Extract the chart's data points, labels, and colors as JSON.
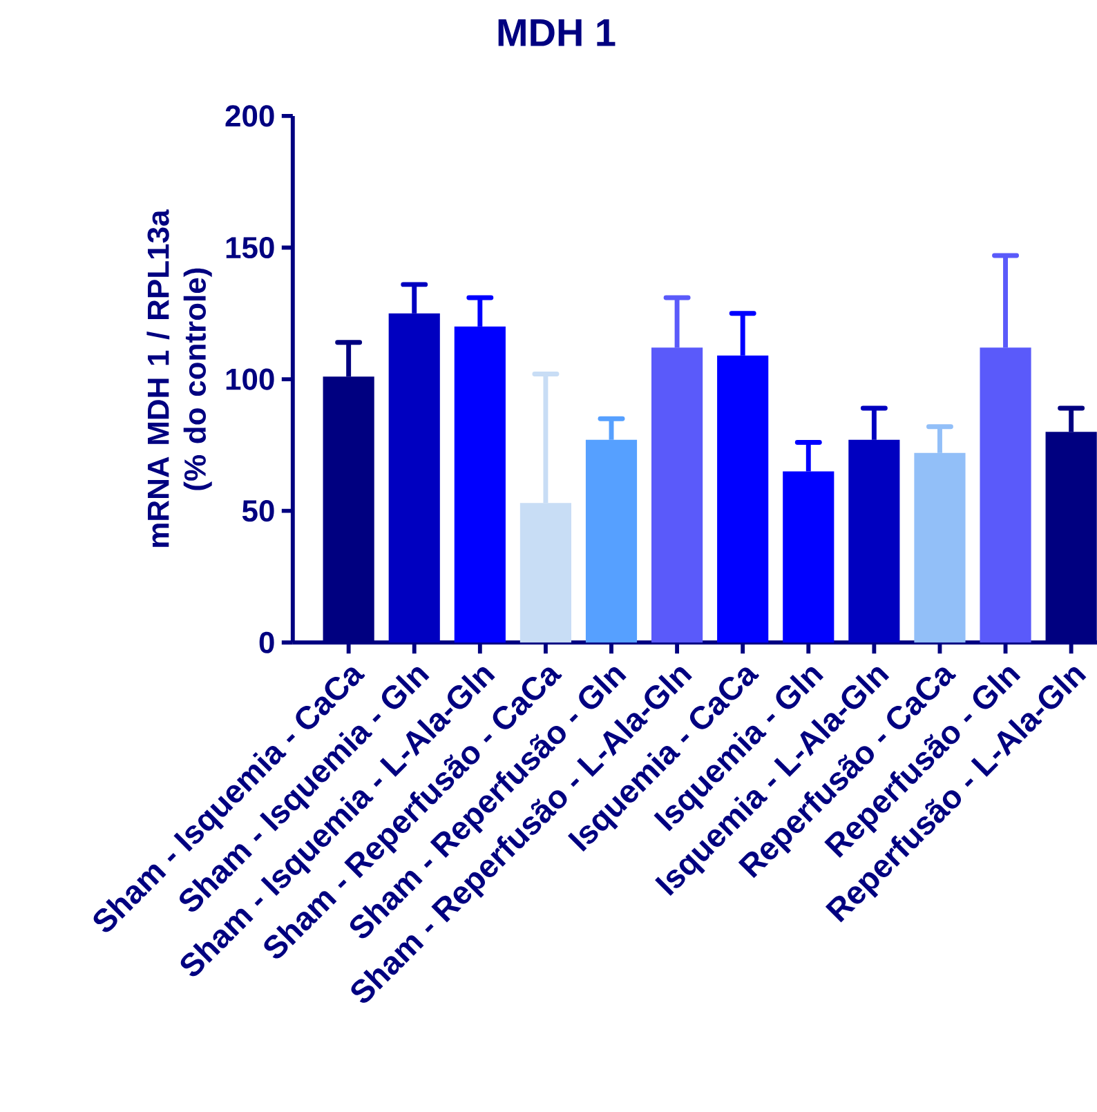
{
  "chart_data": {
    "type": "bar",
    "title": "MDH 1",
    "ylabel": "mRNA MDH 1 / RPL13a (% do controle)",
    "categories": [
      "Sham - Isquemia - CaCa",
      "Sham - Isquemia - Gln",
      "Sham - Isquemia - L-Ala-Gln",
      "Sham - Reperfusão - CaCa",
      "Sham - Reperfusão - Gln",
      "Sham - Reperfusão - L-Ala-Gln",
      "Isquemia - CaCa",
      "Isquemia - Gln",
      "Isquemia - L-Ala-Gln",
      "Reperfusão - CaCa",
      "Reperfusão - Gln",
      "Reperfusão - L-Ala-Gln"
    ],
    "values": [
      101,
      125,
      120,
      53,
      77,
      112,
      109,
      65,
      77,
      72,
      112,
      80
    ],
    "errors": [
      [
        101,
        114
      ],
      [
        125,
        136
      ],
      [
        120,
        131
      ],
      [
        53,
        102
      ],
      [
        77,
        85
      ],
      [
        112,
        131
      ],
      [
        109,
        125
      ],
      [
        65,
        76
      ],
      [
        77,
        89
      ],
      [
        72,
        82
      ],
      [
        112,
        147
      ],
      [
        80,
        89
      ]
    ],
    "colors": [
      "#000080",
      "#0000c0",
      "#0000ff",
      "#c8ddf5",
      "#56a0ff",
      "#5a5afa",
      "#0000ff",
      "#0000ff",
      "#0000c0",
      "#92bff8",
      "#5a5afa",
      "#000080"
    ],
    "ylim": [
      0,
      200
    ],
    "yticks": [
      0,
      50,
      100,
      150,
      200
    ],
    "grid": false
  }
}
